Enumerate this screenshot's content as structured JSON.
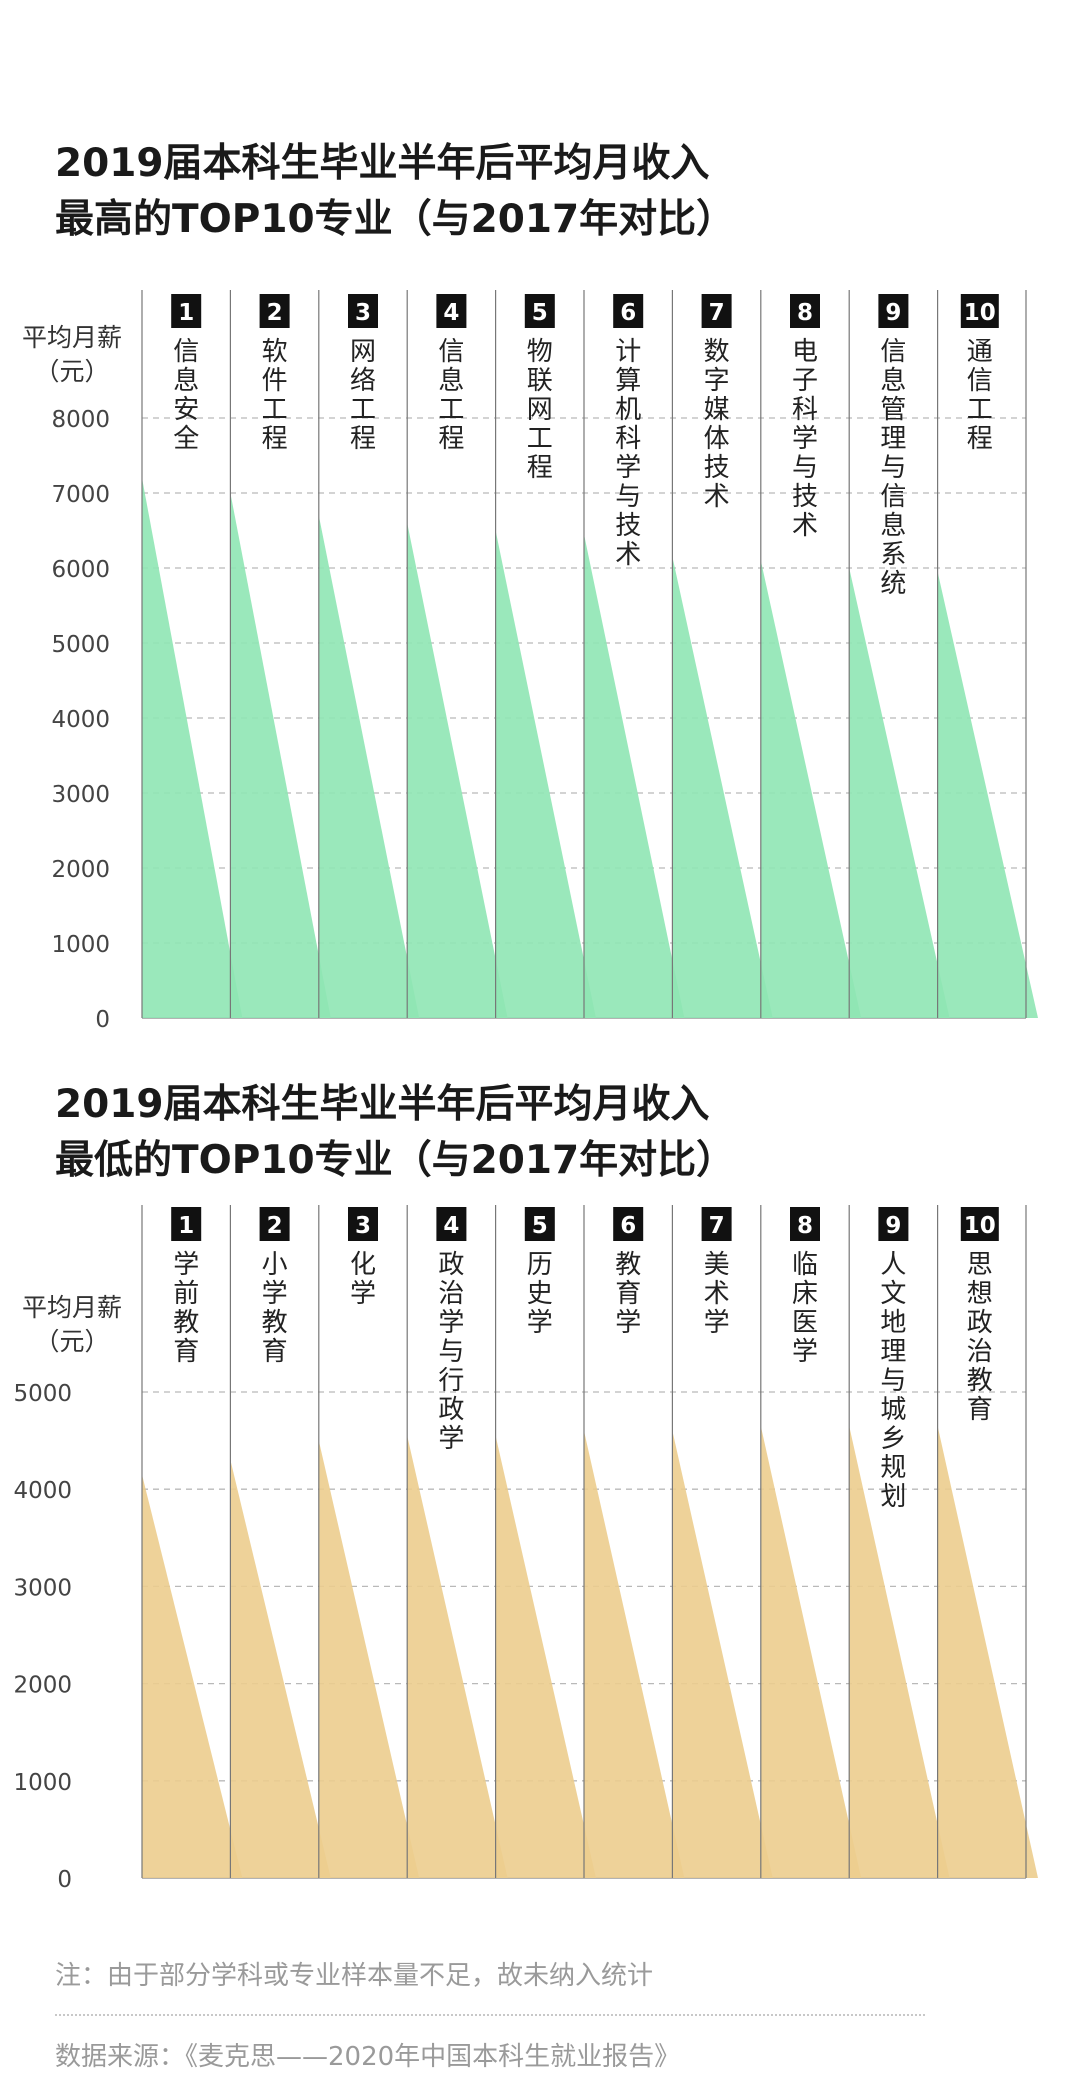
{
  "chart_data": [
    {
      "type": "area",
      "title": "2019届本科生毕业半年后平均月收入最高的TOP10专业（与2017年对比）",
      "title_lines": [
        "2019届本科生毕业半年后平均月收入",
        "最高的TOP10专业（与2017年对比）"
      ],
      "ylabel_lines": [
        "平均月薪",
        "（元）"
      ],
      "ylim": [
        0,
        8000
      ],
      "yticks": [
        0,
        1000,
        2000,
        3000,
        4000,
        5000,
        6000,
        7000,
        8000
      ],
      "grid": true,
      "color": "#8fe6b4",
      "categories": [
        {
          "rank": "1",
          "name": "信息安全",
          "value": 7200
        },
        {
          "rank": "2",
          "name": "软件工程",
          "value": 7000
        },
        {
          "rank": "3",
          "name": "网络工程",
          "value": 6700
        },
        {
          "rank": "4",
          "name": "信息工程",
          "value": 6600
        },
        {
          "rank": "5",
          "name": "物联网工程",
          "value": 6500
        },
        {
          "rank": "6",
          "name": "计算机科学与技术",
          "value": 6450
        },
        {
          "rank": "7",
          "name": "数字媒体技术",
          "value": 6150
        },
        {
          "rank": "8",
          "name": "电子科学与技术",
          "value": 6100
        },
        {
          "rank": "9",
          "name": "信息管理与信息系统",
          "value": 6000
        },
        {
          "rank": "10",
          "name": "通信工程",
          "value": 5950
        }
      ]
    },
    {
      "type": "area",
      "title": "2019届本科生毕业半年后平均月收入最低的TOP10专业（与2017年对比）",
      "title_lines": [
        "2019届本科生毕业半年后平均月收入",
        "最低的TOP10专业（与2017年对比）"
      ],
      "ylabel_lines": [
        "平均月薪",
        "（元）"
      ],
      "ylim": [
        0,
        5000
      ],
      "yticks": [
        0,
        1000,
        2000,
        3000,
        4000,
        5000
      ],
      "grid": true,
      "color": "#eccd8e",
      "categories": [
        {
          "rank": "1",
          "name": "学前教育",
          "value": 4150
        },
        {
          "rank": "2",
          "name": "小学教育",
          "value": 4300
        },
        {
          "rank": "3",
          "name": "化学",
          "value": 4500
        },
        {
          "rank": "4",
          "name": "政治学与行政学",
          "value": 4550
        },
        {
          "rank": "5",
          "name": "历史学",
          "value": 4550
        },
        {
          "rank": "6",
          "name": "教育学",
          "value": 4600
        },
        {
          "rank": "7",
          "name": "美术学",
          "value": 4600
        },
        {
          "rank": "8",
          "name": "临床医学",
          "value": 4650
        },
        {
          "rank": "9",
          "name": "人文地理与城乡规划",
          "value": 4650
        },
        {
          "rank": "10",
          "name": "思想政治教育",
          "value": 4650
        }
      ]
    }
  ],
  "footer": {
    "note": "注：由于部分学科或专业样本量不足，故未纳入统计",
    "source": "数据来源：《麦克思——2020年中国本科生就业报告》"
  }
}
